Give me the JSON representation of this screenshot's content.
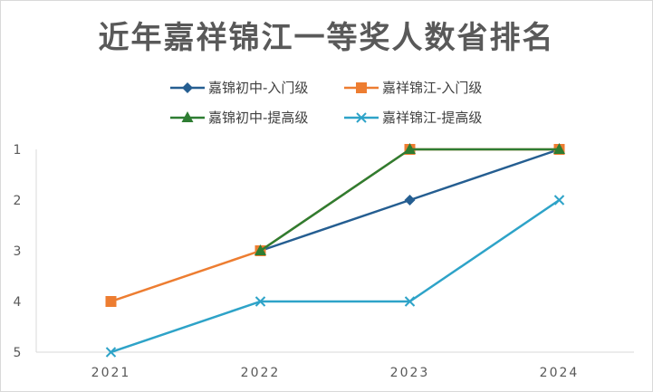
{
  "chart_data": {
    "type": "line",
    "title": "近年嘉祥锦江一等奖人数省排名",
    "xlabel": "",
    "ylabel": "",
    "categories": [
      "2021",
      "2022",
      "2023",
      "2024"
    ],
    "y_ticks": [
      "1",
      "2",
      "3",
      "4",
      "5"
    ],
    "ylim": [
      1,
      5
    ],
    "y_inverted": true,
    "legend_position": "top",
    "grid": false,
    "series": [
      {
        "name": "嘉锦初中-入门级",
        "values": [
          null,
          3,
          2,
          1
        ],
        "color": "#255e91",
        "marker": "diamond"
      },
      {
        "name": "嘉祥锦江-入门级",
        "values": [
          4,
          3,
          1,
          1
        ],
        "color": "#ed7d31",
        "marker": "square"
      },
      {
        "name": "嘉锦初中-提高级",
        "values": [
          null,
          3,
          1,
          1
        ],
        "color": "#2e7d32",
        "marker": "triangle"
      },
      {
        "name": "嘉祥锦江-提高级",
        "values": [
          5,
          4,
          4,
          2
        ],
        "color": "#2ea3c8",
        "marker": "x"
      }
    ]
  }
}
